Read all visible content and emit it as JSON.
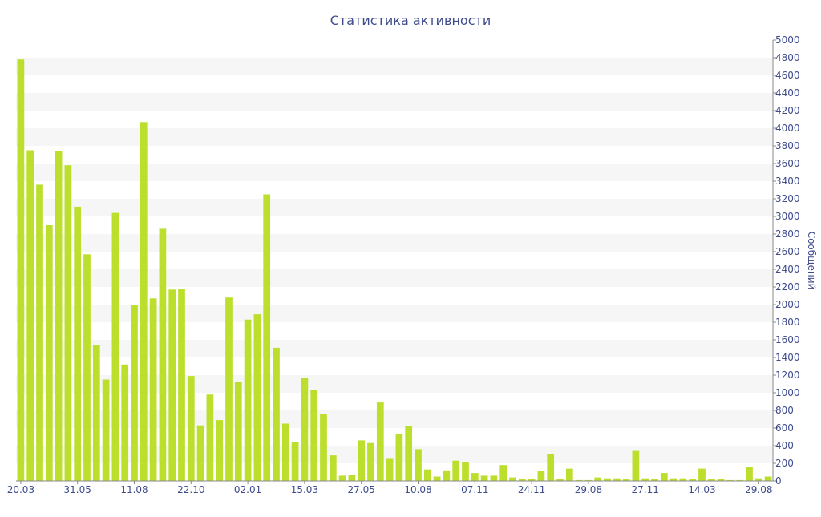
{
  "chart_data": {
    "type": "bar",
    "title": "Статистика активности",
    "xlabel": "",
    "ylabel": "Сообщений",
    "ylim": [
      0,
      5000
    ],
    "ytick_step": 200,
    "x_tick_labels": [
      {
        "index": 0,
        "label": "20.03"
      },
      {
        "index": 6,
        "label": "31.05"
      },
      {
        "index": 12,
        "label": "11.08"
      },
      {
        "index": 18,
        "label": "22.10"
      },
      {
        "index": 24,
        "label": "02.01"
      },
      {
        "index": 30,
        "label": "15.03"
      },
      {
        "index": 36,
        "label": "27.05"
      },
      {
        "index": 42,
        "label": "10.08"
      },
      {
        "index": 48,
        "label": "07.11"
      },
      {
        "index": 54,
        "label": "24.11"
      },
      {
        "index": 60,
        "label": "29.08"
      },
      {
        "index": 66,
        "label": "27.11"
      },
      {
        "index": 72,
        "label": "14.03"
      },
      {
        "index": 78,
        "label": "29.08"
      }
    ],
    "values": [
      4780,
      3750,
      3360,
      2900,
      3740,
      3580,
      3110,
      2570,
      1540,
      1150,
      3040,
      1320,
      2000,
      4070,
      2070,
      2860,
      2170,
      2180,
      1190,
      630,
      980,
      690,
      2080,
      1120,
      1830,
      1890,
      3250,
      1510,
      650,
      440,
      1170,
      1030,
      760,
      290,
      60,
      70,
      460,
      430,
      890,
      250,
      530,
      620,
      360,
      130,
      50,
      120,
      230,
      210,
      90,
      60,
      60,
      180,
      40,
      20,
      20,
      110,
      300,
      20,
      140,
      10,
      10,
      40,
      30,
      30,
      20,
      340,
      30,
      20,
      90,
      30,
      30,
      20,
      140,
      20,
      20,
      10,
      10,
      160,
      30,
      50
    ],
    "bar_color": "#bbdf2c",
    "band_color": "#f6f6f6",
    "text_color": "#3e4b8c",
    "axis_color": "#888888",
    "grid": "alternating horizontal bands",
    "legend": "none"
  }
}
